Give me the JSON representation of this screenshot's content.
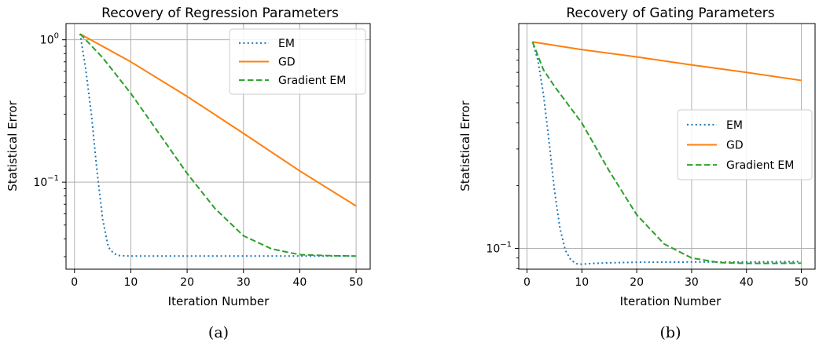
{
  "chart_data": [
    {
      "type": "line",
      "title": "Recovery of Regression Parameters",
      "xlabel": "Iteration Number",
      "ylabel": "Statistical Error",
      "yscale": "log",
      "xlim": [
        -1.5,
        52.5
      ],
      "ylim": [
        0.0245,
        1.3
      ],
      "xticks": [
        0,
        10,
        20,
        30,
        40,
        50
      ],
      "xtick_labels": [
        "0",
        "10",
        "20",
        "30",
        "40",
        "50"
      ],
      "yticks": [
        1.0,
        0.1
      ],
      "ytick_labels": [
        "10^0",
        "10^-1"
      ],
      "grid": true,
      "legend_position": "top-right",
      "caption": "(a)",
      "series": [
        {
          "name": "EM",
          "color": "#1f77b4",
          "dash": "dotted",
          "x": [
            1,
            2,
            3,
            4,
            5,
            6,
            7,
            8,
            10,
            15,
            20,
            30,
            40,
            50
          ],
          "y": [
            1.1,
            0.62,
            0.3,
            0.12,
            0.055,
            0.035,
            0.0315,
            0.0305,
            0.0303,
            0.0303,
            0.0303,
            0.0303,
            0.0303,
            0.0303
          ]
        },
        {
          "name": "GD",
          "color": "#ff7f0e",
          "dash": "solid",
          "x": [
            1,
            10,
            20,
            30,
            40,
            50
          ],
          "y": [
            1.1,
            0.7,
            0.4,
            0.22,
            0.12,
            0.068
          ]
        },
        {
          "name": "Gradient EM",
          "color": "#2ca02c",
          "dash": "dashed",
          "x": [
            1,
            5,
            10,
            15,
            20,
            25,
            30,
            35,
            40,
            45,
            50
          ],
          "y": [
            1.1,
            0.75,
            0.42,
            0.22,
            0.115,
            0.065,
            0.042,
            0.034,
            0.031,
            0.0305,
            0.0303
          ]
        }
      ]
    },
    {
      "type": "line",
      "title": "Recovery of Gating Parameters",
      "xlabel": "Iteration Number",
      "ylabel": "Statistical Error",
      "yscale": "log",
      "xlim": [
        -1.5,
        52.5
      ],
      "ylim": [
        0.0795,
        1.2
      ],
      "xticks": [
        0,
        10,
        20,
        30,
        40,
        50
      ],
      "xtick_labels": [
        "0",
        "10",
        "20",
        "30",
        "40",
        "50"
      ],
      "yticks": [
        0.1
      ],
      "ytick_labels": [
        "10^-1"
      ],
      "grid": true,
      "legend_position": "center-right",
      "caption": "(b)",
      "series": [
        {
          "name": "EM",
          "color": "#1f77b4",
          "dash": "dotted",
          "x": [
            1,
            2,
            3,
            4,
            5,
            6,
            7,
            8,
            9,
            10,
            12,
            15,
            20,
            30,
            40,
            50
          ],
          "y": [
            0.98,
            0.8,
            0.55,
            0.33,
            0.19,
            0.125,
            0.098,
            0.088,
            0.0845,
            0.084,
            0.0848,
            0.0853,
            0.0858,
            0.086,
            0.086,
            0.0865
          ]
        },
        {
          "name": "GD",
          "color": "#ff7f0e",
          "dash": "solid",
          "x": [
            1,
            10,
            20,
            30,
            40,
            50
          ],
          "y": [
            0.98,
            0.9,
            0.83,
            0.76,
            0.7,
            0.64
          ]
        },
        {
          "name": "Gradient EM",
          "color": "#2ca02c",
          "dash": "dashed",
          "x": [
            1,
            3,
            5,
            10,
            15,
            20,
            25,
            30,
            35,
            40,
            45,
            50
          ],
          "y": [
            0.98,
            0.72,
            0.6,
            0.4,
            0.235,
            0.145,
            0.105,
            0.09,
            0.0855,
            0.0848,
            0.0848,
            0.085
          ]
        }
      ]
    }
  ]
}
